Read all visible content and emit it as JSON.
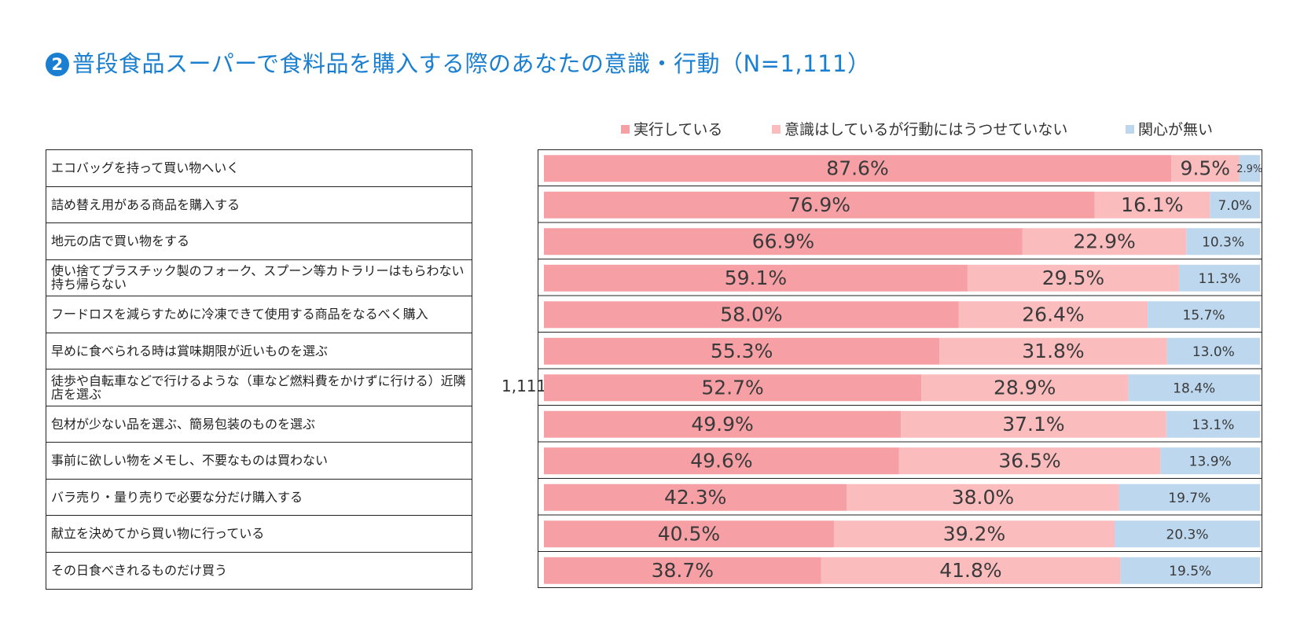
{
  "title": "普段食品スーパーで食料品を購入する際のあなたの意識・行動（N=1,111）",
  "title_number": "2",
  "n_value": "1,111",
  "colors": {
    "series0": "#f6a0a5",
    "series1": "#fbbcbe",
    "series2": "#bdd7ee",
    "title": "#1a7fd0"
  },
  "chart_data": {
    "type": "bar",
    "orientation": "horizontal",
    "stacked": "percent",
    "title": "普段食品スーパーで食料品を購入する際のあなたの意識・行動（N=1,111）",
    "legend_position": "top",
    "xlim": [
      0,
      100
    ],
    "categories": [
      "エコバッグを持って買い物へいく",
      "詰め替え用がある商品を購入する",
      "地元の店で買い物をする",
      "使い捨てプラスチック製のフォーク、スプーン等カトラリーはもらわない持ち帰らない",
      "フードロスを減らすために冷凍できて使用する商品をなるべく購入",
      "早めに食べられる時は賞味期限が近いものを選ぶ",
      "徒歩や自転車などで行けるような（車など燃料費をかけずに行ける）近隣店を選ぶ",
      "包材が少ない品を選ぶ、簡易包装のものを選ぶ",
      "事前に欲しい物をメモし、不要なものは買わない",
      "バラ売り・量り売りで必要な分だけ購入する",
      "献立を決めてから買い物に行っている",
      "その日食べきれるものだけ買う"
    ],
    "series": [
      {
        "name": "実行している",
        "values": [
          87.6,
          76.9,
          66.9,
          59.1,
          58.0,
          55.3,
          52.7,
          49.9,
          49.6,
          42.3,
          40.5,
          38.7
        ],
        "labels": [
          "87.6%",
          "76.9%",
          "66.9%",
          "59.1%",
          "58.0%",
          "55.3%",
          "52.7%",
          "49.9%",
          "49.6%",
          "42.3%",
          "40.5%",
          "38.7%"
        ]
      },
      {
        "name": "意識はしているが行動にはうつせていない",
        "values": [
          9.5,
          16.1,
          22.9,
          29.5,
          26.4,
          31.8,
          28.9,
          37.1,
          36.5,
          38.0,
          39.2,
          41.8
        ],
        "labels": [
          "9.5%",
          "16.1%",
          "22.9%",
          "29.5%",
          "26.4%",
          "31.8%",
          "28.9%",
          "37.1%",
          "36.5%",
          "38.0%",
          "39.2%",
          "41.8%"
        ]
      },
      {
        "name": "関心が無い",
        "values": [
          2.9,
          7.0,
          10.3,
          11.3,
          15.7,
          13.0,
          18.4,
          13.1,
          13.9,
          19.7,
          20.3,
          19.5
        ],
        "labels": [
          "2.9%",
          "7.0%",
          "10.3%",
          "11.3%",
          "15.7%",
          "13.0%",
          "18.4%",
          "13.1%",
          "13.9%",
          "19.7%",
          "20.3%",
          "19.5%"
        ]
      }
    ]
  }
}
